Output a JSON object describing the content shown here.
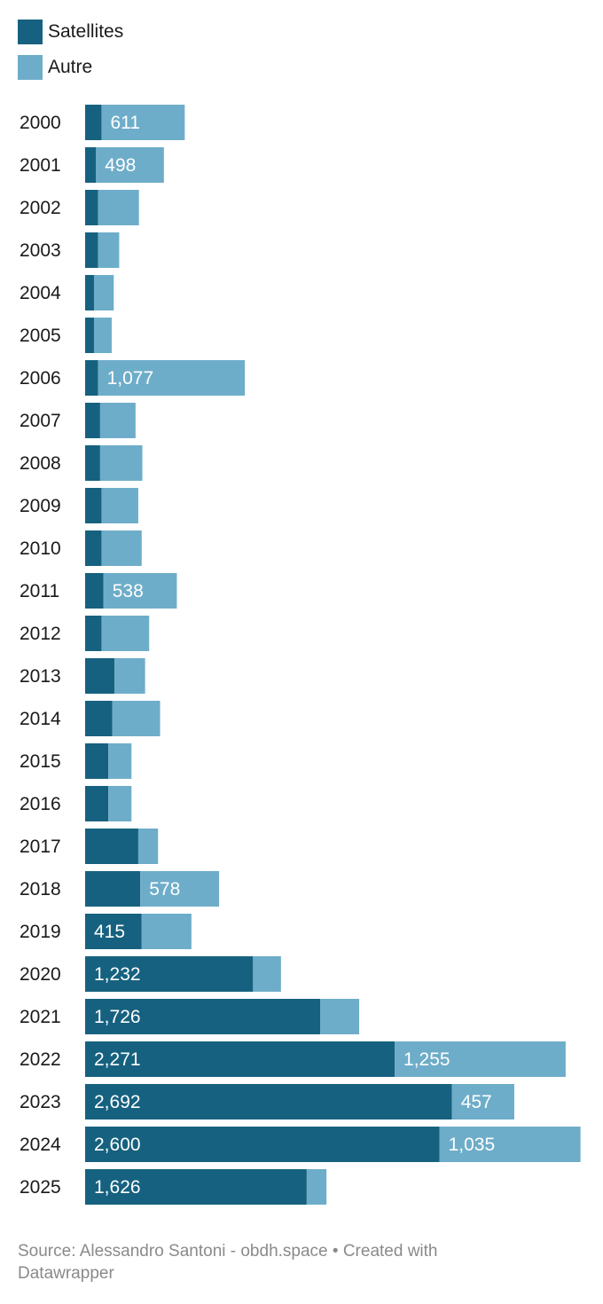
{
  "chart_data": {
    "type": "bar",
    "orientation": "horizontal",
    "stacked": true,
    "colors": {
      "Satellites": "#16617f",
      "Autre": "#6eadc9",
      "label_text": "#ffffff"
    },
    "legend_position": "top-left",
    "grid": false,
    "xlim": [
      0,
      3800
    ],
    "categories": [
      "2000",
      "2001",
      "2002",
      "2003",
      "2004",
      "2005",
      "2006",
      "2007",
      "2008",
      "2009",
      "2010",
      "2011",
      "2012",
      "2013",
      "2014",
      "2015",
      "2016",
      "2017",
      "2018",
      "2019",
      "2020",
      "2021",
      "2022",
      "2023",
      "2024",
      "2025"
    ],
    "series": [
      {
        "name": "Satellites",
        "values": [
          120,
          80,
          95,
          95,
          65,
          65,
          95,
          110,
          110,
          120,
          120,
          135,
          120,
          215,
          200,
          170,
          170,
          390,
          405,
          415,
          1232,
          1726,
          2271,
          2692,
          2600,
          1626
        ]
      },
      {
        "name": "Autre",
        "values": [
          611,
          498,
          300,
          155,
          145,
          130,
          1077,
          260,
          310,
          270,
          295,
          538,
          350,
          225,
          350,
          170,
          170,
          145,
          578,
          365,
          205,
          285,
          1255,
          457,
          1035,
          145
        ]
      }
    ],
    "shown_labels": {
      "Satellites": [
        "",
        "",
        "",
        "",
        "",
        "",
        "",
        "",
        "",
        "",
        "",
        "",
        "",
        "",
        "",
        "",
        "",
        "",
        "",
        "415",
        "1,232",
        "1,726",
        "2,271",
        "2,692",
        "2,600",
        "1,626"
      ],
      "Autre": [
        "611",
        "498",
        "",
        "",
        "",
        "",
        "1,077",
        "",
        "",
        "",
        "",
        "538",
        "",
        "",
        "",
        "",
        "",
        "",
        "578",
        "",
        "",
        "",
        "1,255",
        "457",
        "1,035",
        ""
      ]
    }
  },
  "legend": {
    "satellites": "Satellites",
    "autre": "Autre"
  },
  "footer": {
    "source": "Source: Alessandro Santoni - obdh.space • Created with Datawrapper"
  }
}
